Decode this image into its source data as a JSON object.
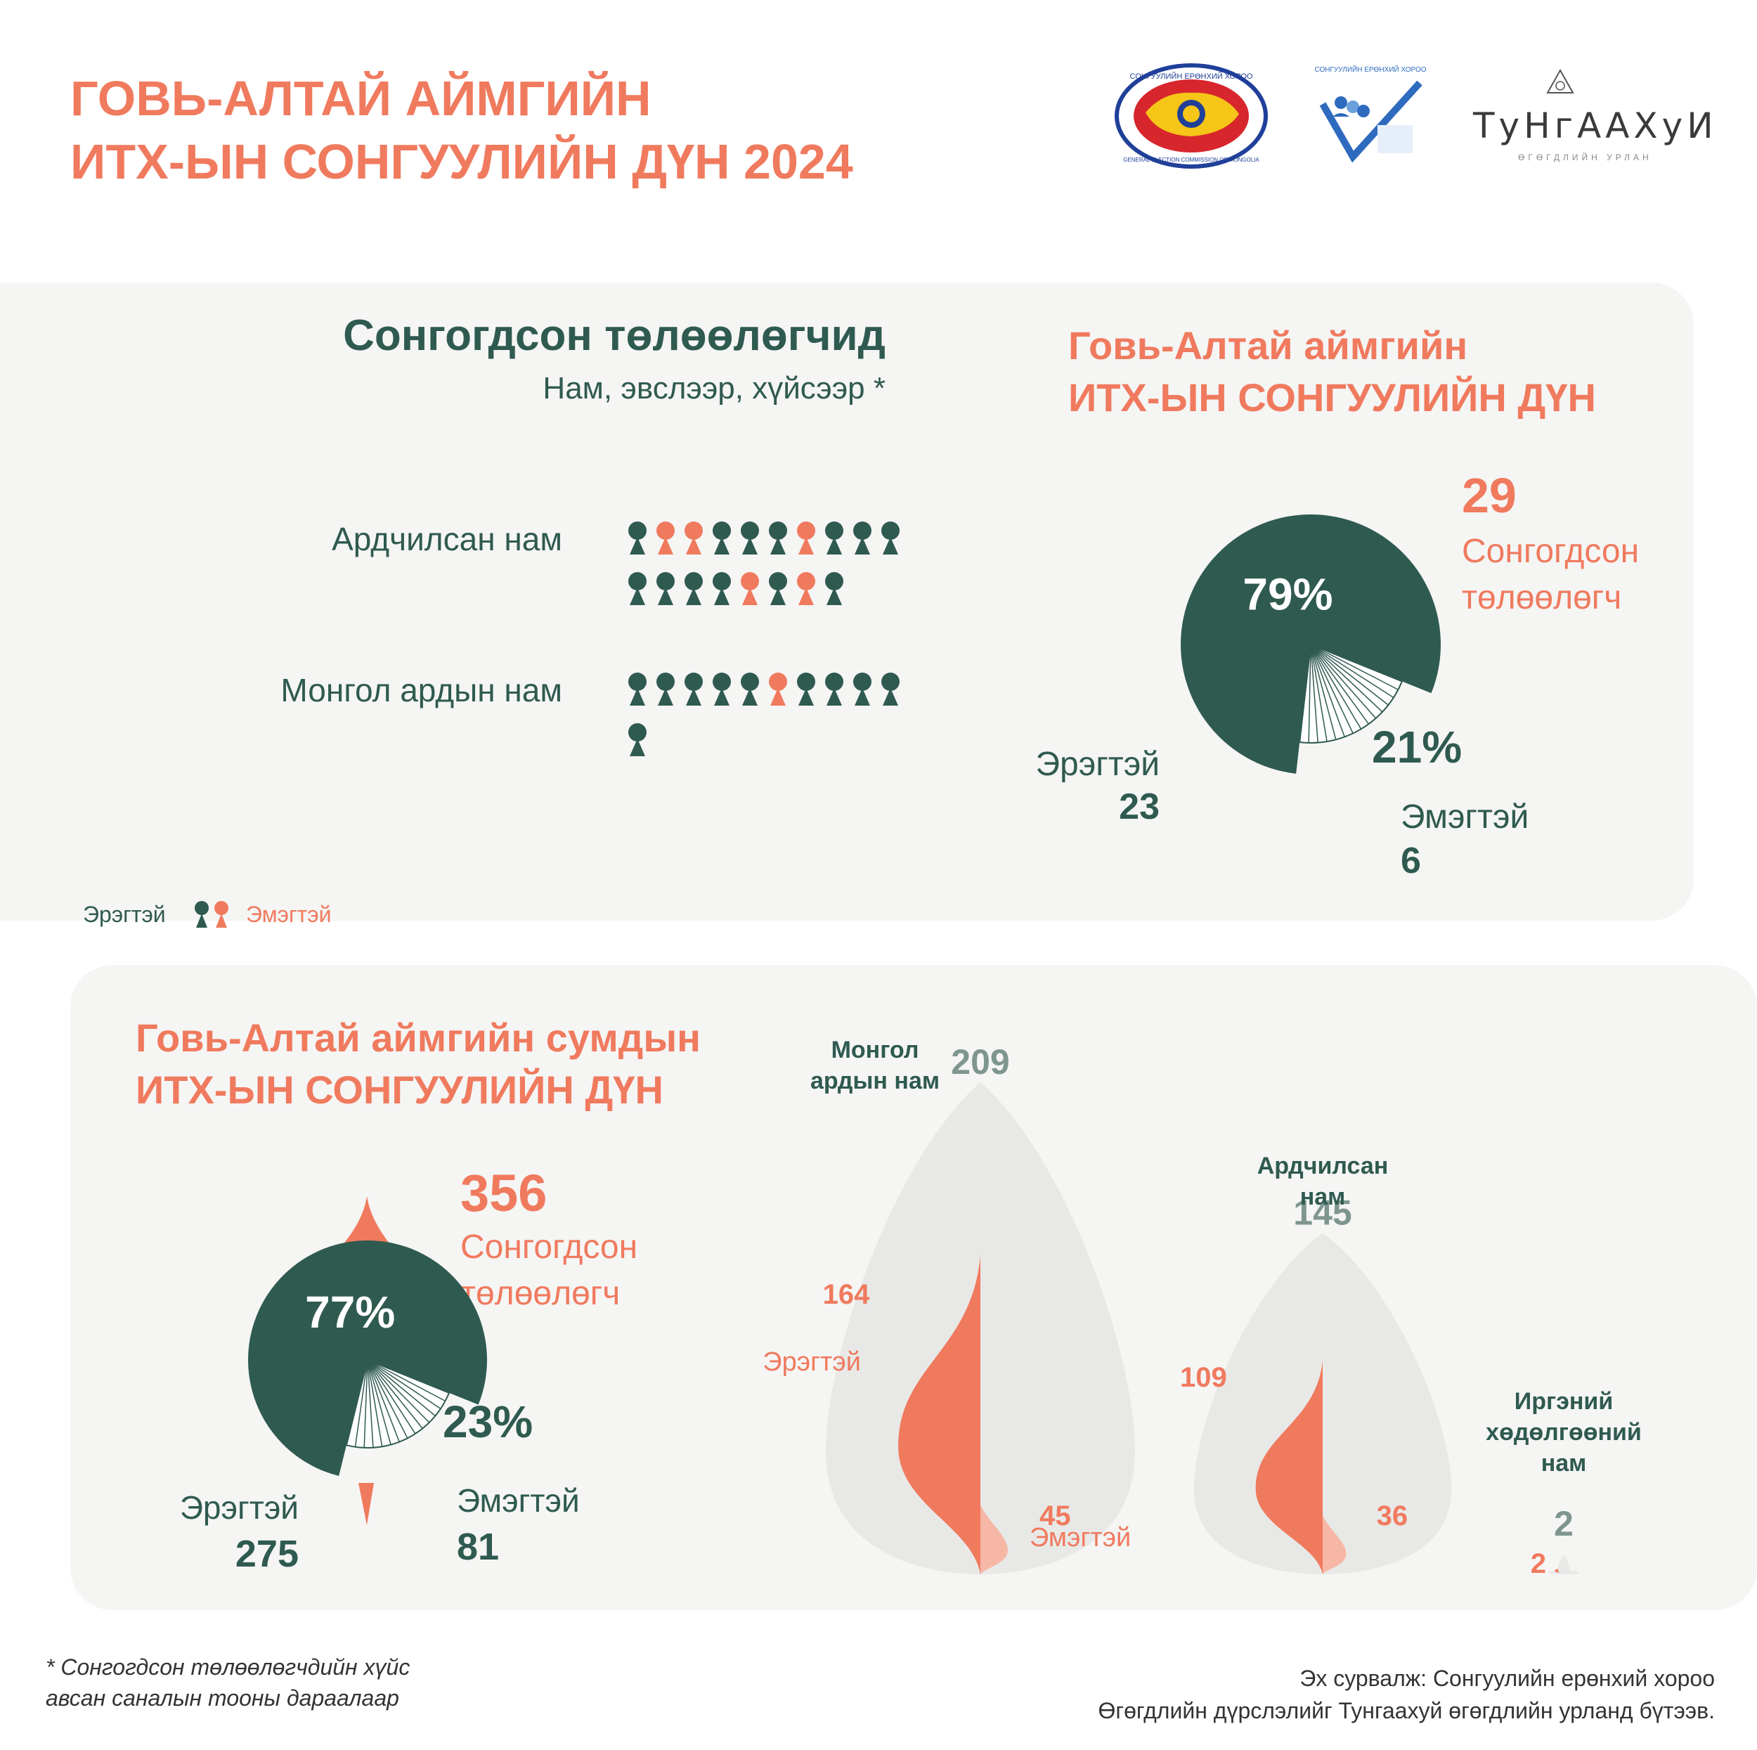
{
  "header": {
    "title_line1": "ГОВЬ-АЛТАЙ АЙМГИЙН",
    "title_line2": "ИТХ-ЫН СОНГУУЛИЙН ДҮН 2024"
  },
  "logos": {
    "gec_icon": "general-election-commission-seal-icon",
    "gec_text": "СОНГУУЛИЙН ЕРӨНХИЙ ХОРОО",
    "gec_ring_text": "GENERAL ELECTION COMMISSION OF MONGOLIA",
    "voter_edu_icon": "voter-education-checkmark-icon",
    "voter_edu_text": "СОНГУУЛИЙН ЕРӨНХИЙ ХОРОО",
    "tungaakhui_name": "ТуНгААХуИ",
    "tungaakhui_sub": "ӨГӨГДЛИЙН УРЛАН"
  },
  "colors": {
    "male": "#2f5a50",
    "female": "#f07a5e",
    "panel": "#f5f5f4",
    "light_female": "#f7b7a6",
    "grey_drop": "#e8e9e7",
    "grey_number": "#7f9690"
  },
  "elected": {
    "heading": "Сонгогдсон төлөөлөгчид",
    "subheading": "Нам, эвслээр, хүйсээр *",
    "parties": [
      {
        "name": "Ардчилсан нам",
        "members": [
          "m",
          "f",
          "f",
          "m",
          "m",
          "m",
          "f",
          "m",
          "m",
          "m",
          "m",
          "m",
          "m",
          "m",
          "f",
          "m",
          "f",
          "m"
        ]
      },
      {
        "name": "Монгол ардын нам",
        "members": [
          "m",
          "m",
          "m",
          "m",
          "m",
          "f",
          "m",
          "m",
          "m",
          "m",
          "m"
        ]
      }
    ],
    "legend_male": "Эрэгтэй",
    "legend_female": "Эмэгтэй"
  },
  "aimag_result": {
    "title_line1": "Говь-Алтай аймгийн",
    "title_line2": "ИТХ-ЫН СОНГУУЛИЙН ДҮН",
    "total": "29",
    "total_label_line1": "Сонгогдсон",
    "total_label_line2": "төлөөлөгч",
    "male_pct": "79%",
    "female_pct": "21%",
    "male_label": "Эрэгтэй",
    "male_count": "23",
    "female_label": "Эмэгтэй",
    "female_count": "6"
  },
  "soum_result": {
    "title_line1": "Говь-Алтай аймгийн сумдын",
    "title_line2": "ИТХ-ЫН СОНГУУЛИЙН ДҮН",
    "total": "356",
    "total_label_line1": "Сонгогдсон",
    "total_label_line2": "төлөөлөгч",
    "male_pct": "77%",
    "female_pct": "23%",
    "male_label": "Эрэгтэй",
    "male_count": "275",
    "female_label": "Эмэгтэй",
    "female_count": "81"
  },
  "chart_data": [
    {
      "type": "pie",
      "categories": [
        "Эрэгтэй",
        "Эмэгтэй"
      ],
      "values": [
        23,
        6
      ],
      "percent_labels": [
        "79%",
        "21%"
      ],
      "total": 29
    },
    {
      "type": "pie",
      "categories": [
        "Эрэгтэй",
        "Эмэгтэй"
      ],
      "values": [
        275,
        81
      ],
      "percent_labels": [
        "77%",
        "23%"
      ],
      "total": 356
    },
    {
      "type": "bar",
      "categories": [
        "Монгол ардын нам",
        "Ардчилсан нам",
        "Иргэний хөдөлгөөний нам"
      ],
      "category_labels": [
        [
          "Монгол",
          "ардын нам"
        ],
        [
          "Ардчилсан",
          "нам"
        ],
        [
          "Иргэний",
          "хөдөлгөөний",
          "нам"
        ]
      ],
      "series": [
        {
          "name": "Эрэгтэй",
          "values": [
            164,
            109,
            2
          ]
        },
        {
          "name": "Эмэгтэй",
          "values": [
            45,
            36,
            0
          ]
        }
      ],
      "totals": [
        209,
        145,
        2
      ],
      "label_male": "Эрэгтэй",
      "label_female": "Эмэгтэй"
    }
  ],
  "footer": {
    "note_line1": "* Сонгогдсон төлөөлөгчдийн хүйс",
    "note_line2": "авсан саналын тооны дараалаар",
    "source_line1": "Эх сурвалж: Сонгуулийн ерөнхий хороо",
    "source_line2": "Өгөгдлийн дүрслэлийг Тунгаахуй өгөгдлийн урланд бүтээв."
  }
}
